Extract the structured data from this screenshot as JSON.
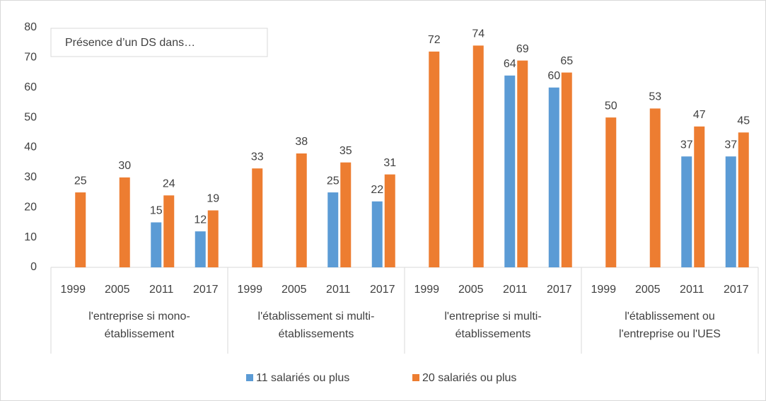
{
  "chart_data": {
    "type": "bar",
    "annotation": "Présence d’un DS dans…",
    "categories": [
      "1999",
      "2005",
      "2011",
      "2017",
      "1999",
      "2005",
      "2011",
      "2017",
      "1999",
      "2005",
      "2011",
      "2017",
      "1999",
      "2005",
      "2011",
      "2017"
    ],
    "groups": [
      [
        "l'entreprise si mono-",
        "établissement"
      ],
      [
        "l'établissement si multi-",
        "établissements"
      ],
      [
        "l'entreprise si multi-",
        "établissements"
      ],
      [
        "l'établissement ou",
        "l'entreprise ou l'UES"
      ]
    ],
    "series": [
      {
        "name": "11 salariés ou plus",
        "color": "#5b9bd5",
        "values": [
          null,
          null,
          15,
          12,
          null,
          null,
          25,
          22,
          null,
          null,
          64,
          60,
          null,
          null,
          37,
          37
        ]
      },
      {
        "name": "20 salariés ou plus",
        "color": "#ed7d31",
        "values": [
          25,
          30,
          24,
          19,
          33,
          38,
          35,
          31,
          72,
          74,
          69,
          65,
          50,
          53,
          47,
          45
        ]
      }
    ],
    "ylim": [
      0,
      80
    ],
    "yticks": [
      0,
      10,
      20,
      30,
      40,
      50,
      60,
      70,
      80
    ],
    "grid": false,
    "legend": "bottom"
  }
}
